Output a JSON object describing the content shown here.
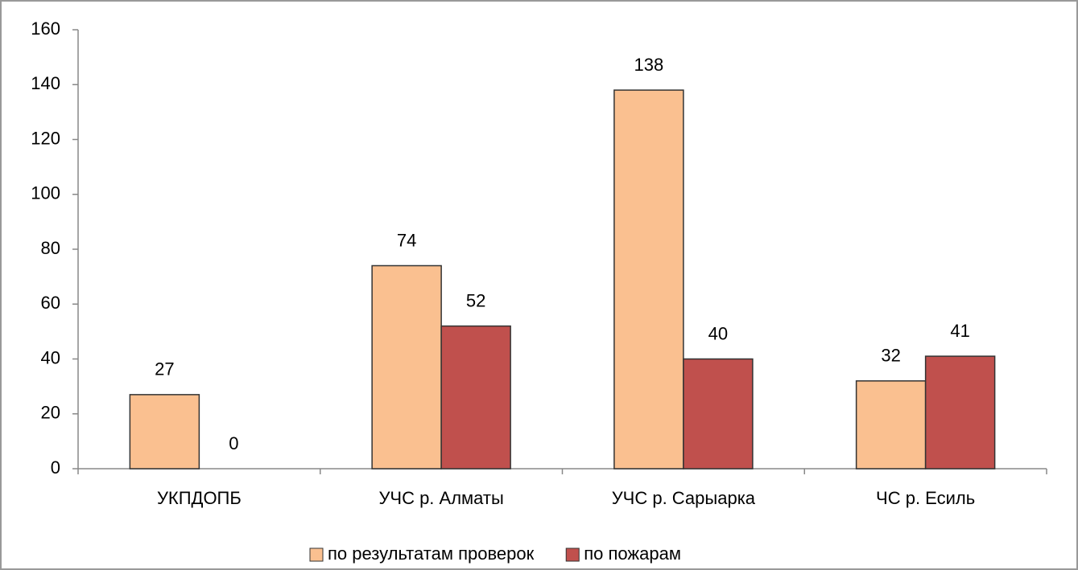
{
  "chart_data": {
    "type": "bar",
    "categories": [
      "УКПДОПБ",
      "УЧС р. Алматы",
      "УЧС р. Сарыарка",
      "ЧС р. Есиль"
    ],
    "series": [
      {
        "name": "по результатам проверок",
        "color": "#fac090",
        "values": [
          27,
          74,
          138,
          32
        ]
      },
      {
        "name": "по пожарам",
        "color": "#c0504d",
        "values": [
          0,
          52,
          40,
          41
        ]
      }
    ],
    "ylim": [
      0,
      160
    ],
    "yticks": [
      0,
      20,
      40,
      60,
      80,
      100,
      120,
      140,
      160
    ],
    "grid": false,
    "legend": "bottom"
  }
}
